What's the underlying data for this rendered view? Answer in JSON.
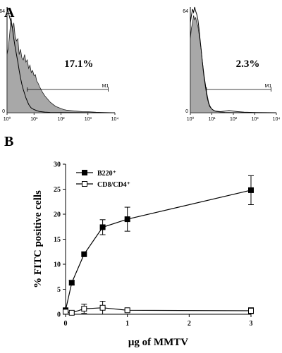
{
  "panel_a": {
    "label": "A",
    "histograms": [
      {
        "percent": "17.1%",
        "gate_label": "M1",
        "y_ticks": [
          "0",
          "64"
        ],
        "x_ticks": [
          "10⁰",
          "10¹",
          "10²",
          "10³",
          "10⁴"
        ],
        "shaded_curve": [
          [
            0,
            0.55
          ],
          [
            0.05,
            0.62
          ],
          [
            0.1,
            0.75
          ],
          [
            0.15,
            0.9
          ],
          [
            0.2,
            0.8
          ],
          [
            0.25,
            0.85
          ],
          [
            0.3,
            0.72
          ],
          [
            0.35,
            0.68
          ],
          [
            0.4,
            0.7
          ],
          [
            0.45,
            0.55
          ],
          [
            0.5,
            0.6
          ],
          [
            0.55,
            0.52
          ],
          [
            0.6,
            0.5
          ],
          [
            0.65,
            0.55
          ],
          [
            0.7,
            0.48
          ],
          [
            0.75,
            0.5
          ],
          [
            0.8,
            0.42
          ],
          [
            0.85,
            0.45
          ],
          [
            0.9,
            0.38
          ],
          [
            0.95,
            0.4
          ],
          [
            1.0,
            0.35
          ],
          [
            1.05,
            0.36
          ],
          [
            1.1,
            0.3
          ],
          [
            1.15,
            0.28
          ],
          [
            1.2,
            0.25
          ],
          [
            1.3,
            0.2
          ],
          [
            1.4,
            0.16
          ],
          [
            1.5,
            0.13
          ],
          [
            1.6,
            0.1
          ],
          [
            1.7,
            0.08
          ],
          [
            1.8,
            0.06
          ],
          [
            1.9,
            0.05
          ],
          [
            2.0,
            0.04
          ],
          [
            2.1,
            0.03
          ],
          [
            2.2,
            0.025
          ],
          [
            2.4,
            0.02
          ],
          [
            2.6,
            0.015
          ],
          [
            2.8,
            0.01
          ],
          [
            3.0,
            0.01
          ],
          [
            3.3,
            0.005
          ],
          [
            3.6,
            0.003
          ],
          [
            4.0,
            0
          ]
        ],
        "control_curve": [
          [
            0,
            1.0
          ],
          [
            0.05,
            0.95
          ],
          [
            0.1,
            0.9
          ],
          [
            0.15,
            0.85
          ],
          [
            0.2,
            0.8
          ],
          [
            0.25,
            0.7
          ],
          [
            0.3,
            0.62
          ],
          [
            0.35,
            0.55
          ],
          [
            0.4,
            0.48
          ],
          [
            0.45,
            0.4
          ],
          [
            0.5,
            0.33
          ],
          [
            0.55,
            0.27
          ],
          [
            0.6,
            0.22
          ],
          [
            0.65,
            0.18
          ],
          [
            0.7,
            0.14
          ],
          [
            0.75,
            0.11
          ],
          [
            0.8,
            0.08
          ],
          [
            0.85,
            0.06
          ],
          [
            0.9,
            0.045
          ],
          [
            1.0,
            0.03
          ],
          [
            1.1,
            0.02
          ],
          [
            1.2,
            0.012
          ],
          [
            1.4,
            0.006
          ],
          [
            1.6,
            0.003
          ],
          [
            2.0,
            0.001
          ],
          [
            4.0,
            0
          ]
        ],
        "gate_range": [
          0.75,
          3.75
        ]
      },
      {
        "percent": "2.3%",
        "gate_label": "M1",
        "y_ticks": [
          "0",
          "64"
        ],
        "x_ticks": [
          "10⁰",
          "10¹",
          "10²",
          "10³",
          "10⁴"
        ],
        "shaded_curve": [
          [
            0,
            0.7
          ],
          [
            0.05,
            0.8
          ],
          [
            0.1,
            0.85
          ],
          [
            0.15,
            0.92
          ],
          [
            0.2,
            0.88
          ],
          [
            0.25,
            0.9
          ],
          [
            0.3,
            0.85
          ],
          [
            0.35,
            0.82
          ],
          [
            0.4,
            0.75
          ],
          [
            0.45,
            0.68
          ],
          [
            0.5,
            0.6
          ],
          [
            0.55,
            0.5
          ],
          [
            0.6,
            0.42
          ],
          [
            0.65,
            0.34
          ],
          [
            0.7,
            0.27
          ],
          [
            0.75,
            0.2
          ],
          [
            0.8,
            0.15
          ],
          [
            0.85,
            0.1
          ],
          [
            0.9,
            0.07
          ],
          [
            0.95,
            0.05
          ],
          [
            1.0,
            0.035
          ],
          [
            1.1,
            0.02
          ],
          [
            1.2,
            0.012
          ],
          [
            1.4,
            0.006
          ],
          [
            1.6,
            0.004
          ],
          [
            2.0,
            0.002
          ],
          [
            4.0,
            0
          ]
        ],
        "control_curve": [
          [
            0,
            0.85
          ],
          [
            0.05,
            0.92
          ],
          [
            0.1,
            0.98
          ],
          [
            0.15,
            0.95
          ],
          [
            0.2,
            1.0
          ],
          [
            0.25,
            0.96
          ],
          [
            0.3,
            0.93
          ],
          [
            0.35,
            0.88
          ],
          [
            0.4,
            0.8
          ],
          [
            0.45,
            0.7
          ],
          [
            0.5,
            0.6
          ],
          [
            0.55,
            0.5
          ],
          [
            0.6,
            0.4
          ],
          [
            0.65,
            0.32
          ],
          [
            0.7,
            0.25
          ],
          [
            0.75,
            0.18
          ],
          [
            0.8,
            0.13
          ],
          [
            0.85,
            0.09
          ],
          [
            0.9,
            0.06
          ],
          [
            1.0,
            0.035
          ],
          [
            1.1,
            0.02
          ],
          [
            1.2,
            0.015
          ],
          [
            1.4,
            0.01
          ],
          [
            1.6,
            0.015
          ],
          [
            1.8,
            0.02
          ],
          [
            2.0,
            0.015
          ],
          [
            2.2,
            0.01
          ],
          [
            2.5,
            0.005
          ],
          [
            3.0,
            0.002
          ],
          [
            4.0,
            0
          ]
        ],
        "gate_range": [
          0.75,
          3.75
        ]
      }
    ]
  },
  "chart_data": {
    "type": "line",
    "panel_label": "B",
    "xlabel": "μg  of MMTV",
    "ylabel": "% FITC positive cells",
    "xlim": [
      0,
      3
    ],
    "ylim": [
      0,
      30
    ],
    "x_ticks": [
      0,
      1,
      2,
      3
    ],
    "y_ticks": [
      0,
      5,
      10,
      15,
      20,
      25,
      30
    ],
    "grid": false,
    "legend_position": "top-left",
    "series": [
      {
        "name": "B220⁺",
        "marker": "filled-square",
        "x": [
          0,
          0.1,
          0.3,
          0.6,
          1,
          3
        ],
        "y": [
          0.8,
          6.3,
          12,
          17.4,
          19,
          24.8
        ],
        "err": [
          0,
          0.4,
          0,
          1.5,
          2.4,
          2.9
        ]
      },
      {
        "name": "CD8/CD4⁺",
        "marker": "open-square",
        "x": [
          0,
          0.1,
          0.3,
          0.6,
          1,
          3
        ],
        "y": [
          0.5,
          0.3,
          1.1,
          1.3,
          0.8,
          0.7
        ],
        "err": [
          0,
          0,
          0.9,
          1.3,
          0.3,
          0.6
        ]
      }
    ]
  }
}
